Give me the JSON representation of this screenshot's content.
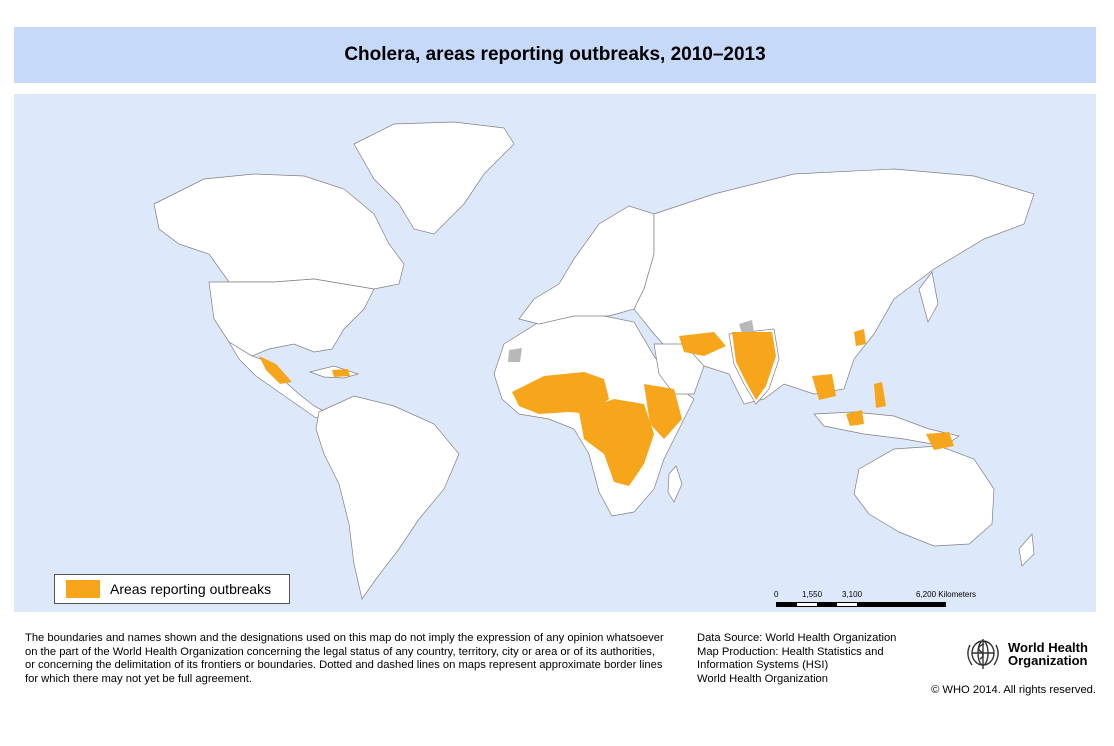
{
  "title": "Cholera, areas reporting outbreaks, 2010–2013",
  "colors": {
    "title_bar": "#c6d9f9",
    "ocean": "#dde8fb",
    "land": "#ffffff",
    "outbreak": "#f7a51a",
    "no_data": "#b8b8b8",
    "border": "#808080"
  },
  "legend": {
    "label": "Areas reporting outbreaks"
  },
  "scale_bar": {
    "ticks": [
      "0",
      "1,550",
      "3,100",
      "6,200 Kilometers"
    ]
  },
  "disclaimer": [
    "The boundaries and names shown and the designations used on this map do not imply the expression of any opinion whatsoever",
    "on the part of the World Health Organization concerning the legal status of any country, territory, city or area or of its authorities,",
    "or concerning the delimitation of its frontiers or boundaries. Dotted and dashed lines on maps represent approximate border lines",
    "for which there may not yet be full agreement."
  ],
  "source": [
    "Data Source: World Health Organization",
    "Map Production: Health Statistics and",
    "Information Systems (HSI)",
    "World Health Organization"
  ],
  "logo": {
    "line1": "World Health",
    "line2": "Organization",
    "icon": "who-emblem-icon"
  },
  "copyright": "© WHO 2014. All rights reserved."
}
